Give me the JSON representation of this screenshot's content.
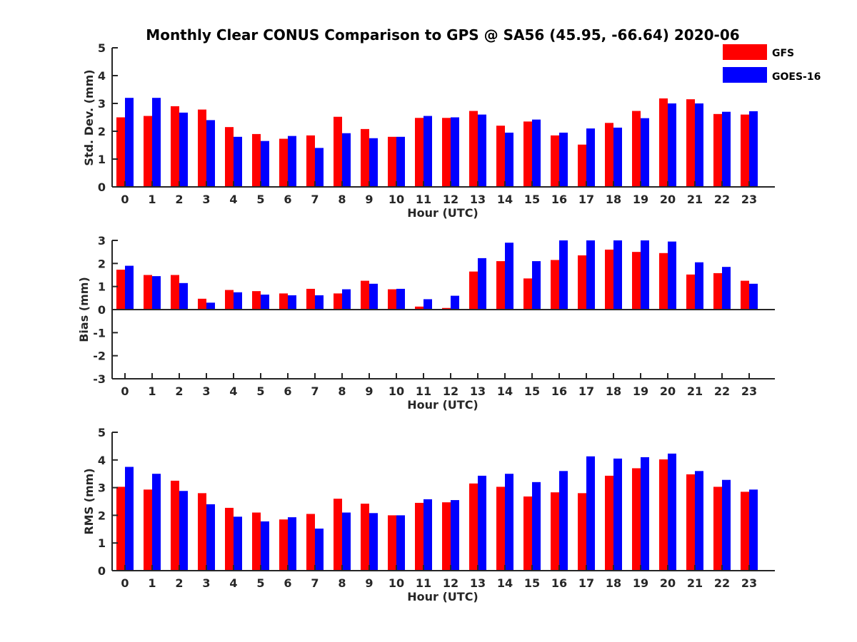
{
  "title": "Monthly Clear CONUS Comparison to GPS @ SA56 (45.95, -66.64) 2020-06",
  "colors": {
    "gfs": "#ff0000",
    "goes": "#0000ff"
  },
  "legend": [
    {
      "name": "GFS",
      "color": "#ff0000"
    },
    {
      "name": "GOES-16",
      "color": "#0000ff"
    }
  ],
  "chart_data": [
    {
      "type": "bar",
      "title": "Monthly Clear CONUS Comparison to GPS @ SA56 (45.95, -66.64) 2020-06",
      "xlabel": "Hour (UTC)",
      "ylabel": "Std. Dev. (mm)",
      "ylim": [
        0,
        5
      ],
      "yticks": [
        "0",
        "1",
        "2",
        "3",
        "4",
        "5"
      ],
      "categories": [
        "0",
        "1",
        "2",
        "3",
        "4",
        "5",
        "6",
        "7",
        "8",
        "9",
        "10",
        "11",
        "12",
        "13",
        "14",
        "15",
        "16",
        "17",
        "18",
        "19",
        "20",
        "21",
        "22",
        "23"
      ],
      "series": [
        {
          "name": "GFS",
          "values": [
            2.5,
            2.55,
            2.9,
            2.78,
            2.15,
            1.9,
            1.73,
            1.85,
            2.52,
            2.08,
            1.8,
            2.48,
            2.48,
            2.73,
            2.2,
            2.35,
            1.85,
            1.52,
            2.3,
            2.73,
            3.18,
            3.15,
            2.62,
            2.6
          ]
        },
        {
          "name": "GOES-16",
          "values": [
            3.2,
            3.2,
            2.67,
            2.4,
            1.8,
            1.65,
            1.83,
            1.4,
            1.93,
            1.75,
            1.8,
            2.55,
            2.5,
            2.6,
            1.95,
            2.42,
            1.95,
            2.1,
            2.13,
            2.47,
            3.0,
            3.0,
            2.7,
            2.72
          ]
        }
      ]
    },
    {
      "type": "bar",
      "xlabel": "Hour (UTC)",
      "ylabel": "Bias (mm)",
      "ylim": [
        -3,
        3
      ],
      "yticks": [
        "-3",
        "-2",
        "-1",
        "0",
        "1",
        "2",
        "3"
      ],
      "categories": [
        "0",
        "1",
        "2",
        "3",
        "4",
        "5",
        "6",
        "7",
        "8",
        "9",
        "10",
        "11",
        "12",
        "13",
        "14",
        "15",
        "16",
        "17",
        "18",
        "19",
        "20",
        "21",
        "22",
        "23"
      ],
      "series": [
        {
          "name": "GFS",
          "values": [
            1.73,
            1.5,
            1.5,
            0.47,
            0.85,
            0.8,
            0.7,
            0.9,
            0.7,
            1.25,
            0.88,
            0.13,
            0.07,
            1.65,
            2.1,
            1.35,
            2.15,
            2.35,
            2.6,
            2.5,
            2.45,
            1.52,
            1.58,
            1.25
          ]
        },
        {
          "name": "GOES-16",
          "values": [
            1.9,
            1.45,
            1.15,
            0.3,
            0.75,
            0.65,
            0.62,
            0.62,
            0.88,
            1.12,
            0.9,
            0.45,
            0.6,
            2.23,
            2.9,
            2.1,
            3.0,
            3.0,
            3.0,
            3.0,
            2.95,
            2.05,
            1.85,
            1.12
          ]
        }
      ]
    },
    {
      "type": "bar",
      "xlabel": "Hour (UTC)",
      "ylabel": "RMS (mm)",
      "ylim": [
        0,
        5
      ],
      "yticks": [
        "0",
        "1",
        "2",
        "3",
        "4",
        "5"
      ],
      "categories": [
        "0",
        "1",
        "2",
        "3",
        "4",
        "5",
        "6",
        "7",
        "8",
        "9",
        "10",
        "11",
        "12",
        "13",
        "14",
        "15",
        "16",
        "17",
        "18",
        "19",
        "20",
        "21",
        "22",
        "23"
      ],
      "series": [
        {
          "name": "GFS",
          "values": [
            3.03,
            2.93,
            3.25,
            2.8,
            2.27,
            2.1,
            1.85,
            2.05,
            2.6,
            2.42,
            2.0,
            2.45,
            2.47,
            3.15,
            3.03,
            2.68,
            2.83,
            2.8,
            3.43,
            3.7,
            4.02,
            3.48,
            3.03,
            2.85
          ]
        },
        {
          "name": "GOES-16",
          "values": [
            3.75,
            3.5,
            2.88,
            2.4,
            1.95,
            1.78,
            1.93,
            1.52,
            2.1,
            2.08,
            2.0,
            2.58,
            2.55,
            3.43,
            3.5,
            3.2,
            3.6,
            4.13,
            4.05,
            4.1,
            4.23,
            3.6,
            3.28,
            2.93
          ]
        }
      ]
    }
  ]
}
